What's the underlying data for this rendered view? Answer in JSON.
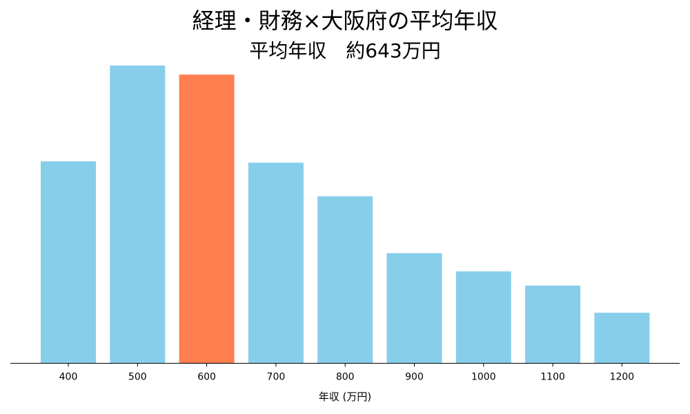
{
  "chart_data": {
    "type": "bar",
    "title": "経理・財務×大阪府の平均年収",
    "subtitle": "平均年収　約643万円",
    "xlabel": "年収 (万円)",
    "ylabel": "",
    "categories": [
      "400",
      "500",
      "600",
      "700",
      "800",
      "900",
      "1000",
      "1100",
      "1200"
    ],
    "values": [
      15.6,
      23.0,
      22.3,
      15.5,
      12.9,
      8.5,
      7.1,
      6.0,
      3.9
    ],
    "highlight_category": "600",
    "ylim": [
      0,
      23
    ],
    "grid": false,
    "legend": "none",
    "colors": {
      "bar": "#87CEEB",
      "highlight": "#FF7F50",
      "axis": "#000000"
    }
  }
}
